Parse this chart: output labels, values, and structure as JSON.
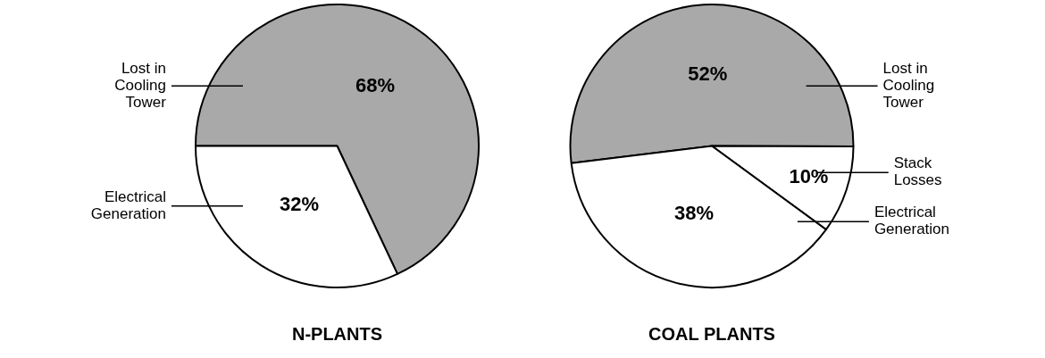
{
  "chart_data": [
    {
      "type": "pie",
      "title": "N-PLANTS",
      "categories": [
        "Lost in Cooling Tower",
        "Electrical Generation"
      ],
      "values": [
        68,
        32
      ],
      "colors": [
        "#a9a9a9",
        "#ffffff"
      ],
      "value_labels": [
        "68%",
        "32%"
      ]
    },
    {
      "type": "pie",
      "title": "COAL PLANTS",
      "categories": [
        "Lost in Cooling Tower",
        "Stack Losses",
        "Electrical Generation"
      ],
      "values": [
        52,
        10,
        38
      ],
      "colors": [
        "#a9a9a9",
        "#ffffff",
        "#ffffff"
      ],
      "value_labels": [
        "52%",
        "10%",
        "38%"
      ]
    }
  ]
}
